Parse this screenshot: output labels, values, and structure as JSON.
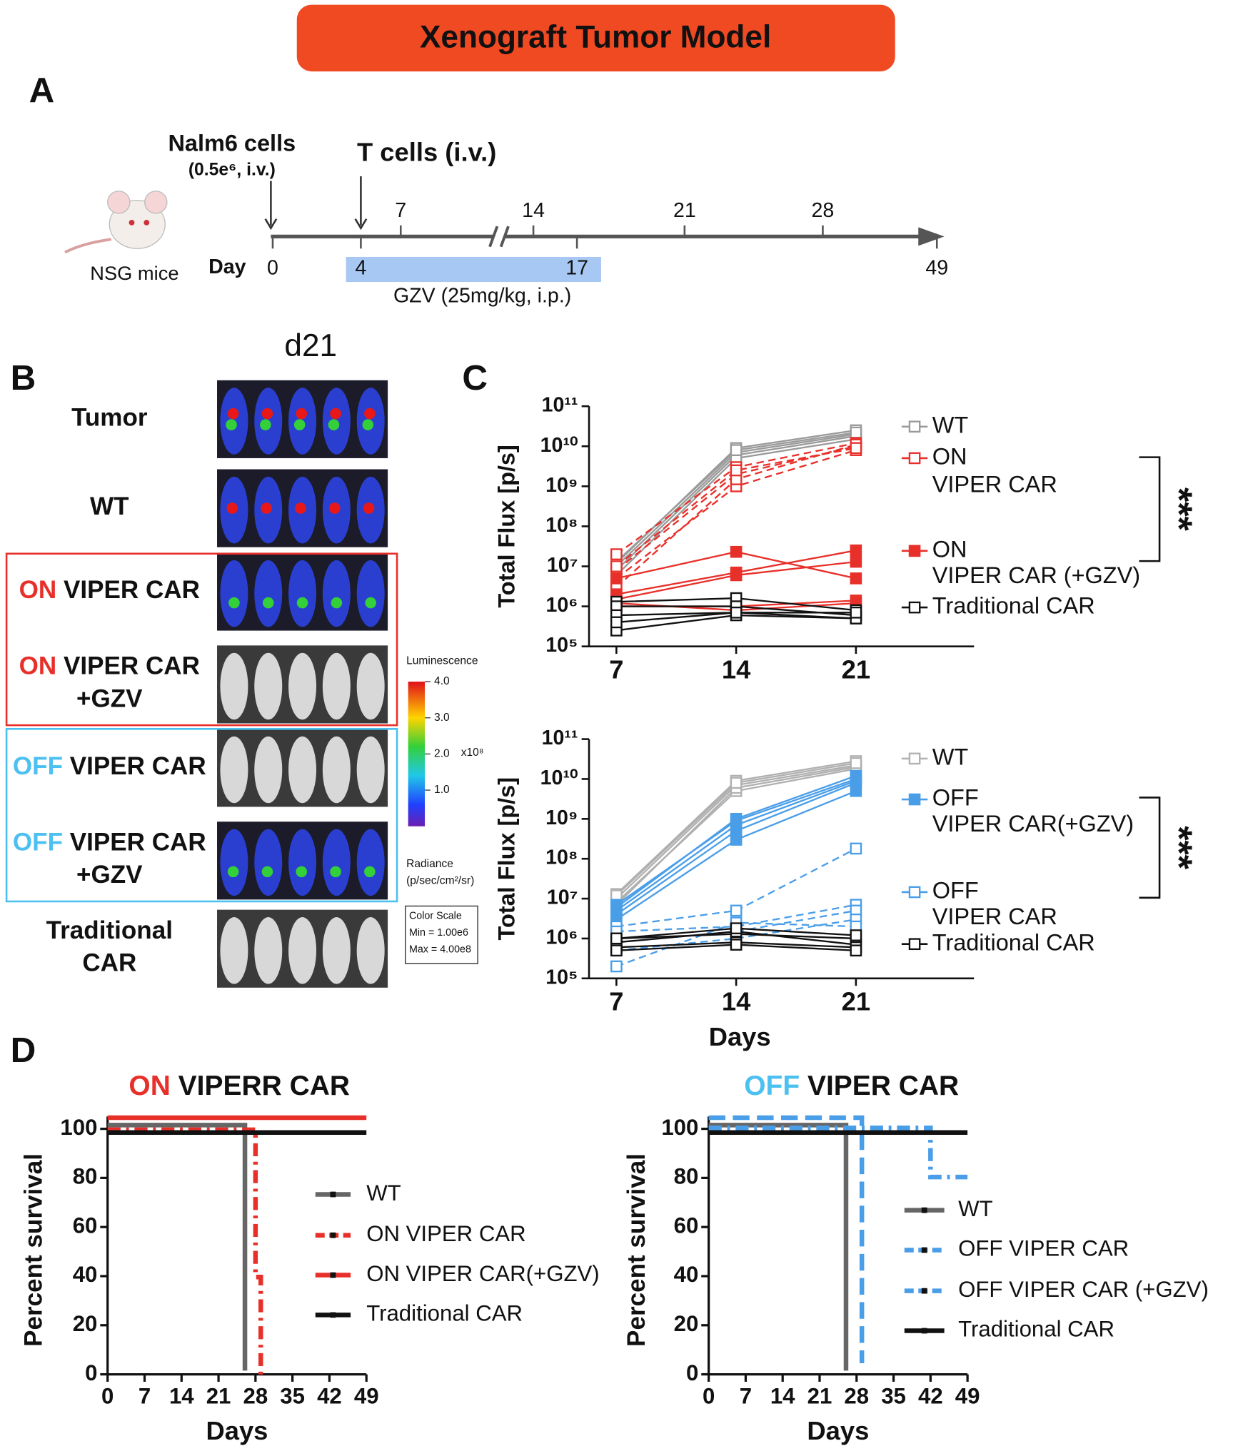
{
  "header": {
    "title": "Xenograft Tumor Model"
  },
  "panel_labels": [
    "A",
    "B",
    "C",
    "D"
  ],
  "panel_a": {
    "mouse": "NSG mice",
    "nalm6": "Nalm6 cells",
    "nalm6_dose": "(0.5e⁶, i.v.)",
    "tcells": "T cells (i.v.)",
    "day_label": "Day",
    "ticks_above": [
      7,
      14,
      21,
      28
    ],
    "ticks_below": [
      0,
      4,
      17,
      49
    ],
    "gzv": "GZV (25mg/kg, i.p.)"
  },
  "panel_b": {
    "title": "d21",
    "rows": [
      {
        "label": [
          "Tumor"
        ]
      },
      {
        "label": [
          "WT"
        ]
      },
      {
        "prefix": "ON",
        "prefix_color": "#e8302a",
        "label": [
          "VIPER CAR"
        ]
      },
      {
        "prefix": "ON",
        "prefix_color": "#e8302a",
        "label": [
          "VIPER CAR",
          "+GZV"
        ]
      },
      {
        "prefix": "OFF",
        "prefix_color": "#4cc0f0",
        "label": [
          "VIPER CAR"
        ]
      },
      {
        "prefix": "OFF",
        "prefix_color": "#4cc0f0",
        "label": [
          "VIPER CAR",
          "+GZV"
        ]
      },
      {
        "label": [
          "Traditional",
          "CAR"
        ]
      }
    ],
    "colorbar": {
      "title": "Luminescence",
      "range": [
        0,
        4
      ],
      "ticks": [
        {
          "value": 4,
          "label": "4.0"
        },
        {
          "value": 3,
          "label": "3.0"
        },
        {
          "value": 2,
          "label": "2.0"
        },
        {
          "value": 1,
          "label": "1.0"
        }
      ],
      "multiplier": "x10⁸",
      "unit_title": "Radiance",
      "unit": "(p/sec/cm²/sr)",
      "scale_box": [
        "Color Scale",
        "Min = 1.00e6",
        "Max = 4.00e8"
      ]
    }
  },
  "chart_data": [
    {
      "type": "line",
      "y_label": "Total Flux [p/s]",
      "log_y": true,
      "x": [
        7,
        14,
        21
      ],
      "xlim": [
        5.4,
        27.9
      ],
      "xticks": [
        7,
        14,
        21
      ],
      "ylim": [
        100000,
        100000000000
      ],
      "yticks": [
        {
          "value": 100000,
          "label": "10⁵"
        },
        {
          "value": 1000000,
          "label": "10⁶"
        },
        {
          "value": 10000000,
          "label": "10⁷"
        },
        {
          "value": 100000000,
          "label": "10⁸"
        },
        {
          "value": 1000000000,
          "label": "10⁹"
        },
        {
          "value": 10000000000,
          "label": "10¹⁰"
        },
        {
          "value": 100000000000,
          "label": "10¹¹"
        }
      ],
      "annotation": "***",
      "series": [
        {
          "name": [
            "WT"
          ],
          "color": "#9a9a9a",
          "marker": "open",
          "dashed": false,
          "values": [
            [
              12000000.0,
              9000000000.0,
              25000000000.0
            ],
            [
              10000000.0,
              7000000000.0,
              20000000000.0
            ],
            [
              8000000.0,
              6000000000.0,
              18000000000.0
            ],
            [
              6000000.0,
              5000000000.0,
              15000000000.0
            ],
            [
              13000000.0,
              8000000000.0,
              22000000000.0
            ]
          ]
        },
        {
          "name": [
            "ON",
            "VIPER CAR"
          ],
          "color": "#e8302a",
          "marker": "open",
          "dashed": true,
          "values": [
            [
              20000000.0,
              3000000000.0,
              12000000000.0
            ],
            [
              8000000.0,
              2000000000.0,
              10000000000.0
            ],
            [
              5000000.0,
              1000000000.0,
              8000000000.0
            ],
            [
              3000000.0,
              1500000000.0,
              11000000000.0
            ],
            [
              10000000.0,
              2500000000.0,
              9000000000.0
            ]
          ]
        },
        {
          "name": [
            "ON",
            "VIPER CAR (+GZV)"
          ],
          "color": "#e8302a",
          "marker": "filled",
          "dashed": false,
          "values": [
            [
              5000000.0,
              23000000.0,
              5000000.0
            ],
            [
              2000000.0,
              7000000.0,
              25000000.0
            ],
            [
              1500000.0,
              6000000.0,
              13000000.0
            ],
            [
              1000000.0,
              1000000.0,
              1400000.0
            ],
            [
              1200000.0,
              800000.0,
              1200000.0
            ]
          ]
        },
        {
          "name": [
            "Traditional CAR"
          ],
          "color": "#111111",
          "marker": "open",
          "dashed": false,
          "values": [
            [
              1300000.0,
              1600000.0,
              800000.0
            ],
            [
              1000000.0,
              1000000.0,
              600000.0
            ],
            [
              600000.0,
              700000.0,
              500000.0
            ],
            [
              250000.0,
              600000.0,
              500000.0
            ],
            [
              400000.0,
              700000.0,
              700000.0
            ]
          ]
        }
      ]
    },
    {
      "type": "line",
      "y_label": "Total Flux [p/s]",
      "x_label": "Days",
      "log_y": true,
      "x": [
        7,
        14,
        21
      ],
      "xlim": [
        5.4,
        27.9
      ],
      "xticks": [
        7,
        14,
        21
      ],
      "ylim": [
        100000,
        100000000000
      ],
      "yticks": [
        {
          "value": 100000,
          "label": "10⁵"
        },
        {
          "value": 1000000,
          "label": "10⁶"
        },
        {
          "value": 10000000,
          "label": "10⁷"
        },
        {
          "value": 100000000,
          "label": "10⁸"
        },
        {
          "value": 1000000000,
          "label": "10⁹"
        },
        {
          "value": 10000000000,
          "label": "10¹⁰"
        },
        {
          "value": 100000000000,
          "label": "10¹¹"
        }
      ],
      "annotation": "***",
      "series": [
        {
          "name": [
            "WT"
          ],
          "color": "#b0b0b0",
          "marker": "open",
          "dashed": false,
          "values": [
            [
              13000000.0,
              9000000000.0,
              28000000000.0
            ],
            [
              10000000.0,
              7000000000.0,
              22000000000.0
            ],
            [
              8000000.0,
              5000000000.0,
              18000000000.0
            ],
            [
              7000000.0,
              6000000000.0,
              20000000000.0
            ],
            [
              12000000.0,
              8000000000.0,
              25000000000.0
            ]
          ]
        },
        {
          "name": [
            "OFF",
            "VIPER CAR(+GZV)"
          ],
          "color": "#4a9ee8",
          "marker": "filled",
          "dashed": false,
          "values": [
            [
              6000000.0,
              1000000000.0,
              12000000000.0
            ],
            [
              5000000.0,
              700000000.0,
              9000000000.0
            ],
            [
              4000000.0,
              500000000.0,
              8000000000.0
            ],
            [
              3000000.0,
              300000000.0,
              5000000000.0
            ],
            [
              7000000.0,
              900000000.0,
              10000000000.0
            ]
          ]
        },
        {
          "name": [
            "OFF",
            "VIPER CAR"
          ],
          "color": "#4a9ee8",
          "marker": "open",
          "dashed": true,
          "values": [
            [
              2000000.0,
              5000000.0,
              180000000.0
            ],
            [
              1500000.0,
              2000000.0,
              7000000.0
            ],
            [
              800000.0,
              1500000.0,
              5000000.0
            ],
            [
              500000.0,
              1000000.0,
              3000000.0
            ],
            [
              200000.0,
              2500000.0,
              2000000.0
            ]
          ]
        },
        {
          "name": [
            "Traditional CAR"
          ],
          "color": "#111111",
          "marker": "open",
          "dashed": false,
          "values": [
            [
              1000000.0,
              1300000.0,
              1000000.0
            ],
            [
              800000.0,
              1500000.0,
              700000.0
            ],
            [
              600000.0,
              800000.0,
              600000.0
            ],
            [
              500000.0,
              700000.0,
              500000.0
            ],
            [
              1000000.0,
              1800000.0,
              1200000.0
            ]
          ]
        }
      ]
    },
    {
      "type": "step",
      "title_prefix": "ON",
      "prefix_color": "#e8302a",
      "title": "VIPERR CAR",
      "y_label": "Percent survival",
      "x_label": "Days",
      "xlim": [
        0,
        49
      ],
      "xticks": [
        0,
        7,
        14,
        21,
        28,
        35,
        42,
        49
      ],
      "ylim": [
        0,
        105
      ],
      "yticks": [
        0,
        20,
        40,
        60,
        80,
        100
      ],
      "series": [
        {
          "name": "WT",
          "color": "#666666",
          "line_style": "solid",
          "x": [
            0,
            26,
            26
          ],
          "values": [
            100,
            100,
            0
          ]
        },
        {
          "name": "ON VIPER CAR",
          "color": "#e8302a",
          "line_style": "dashdot",
          "x": [
            0,
            28,
            28,
            29,
            29
          ],
          "values": [
            100,
            100,
            40,
            40,
            0
          ]
        },
        {
          "name": "ON VIPER CAR(+GZV)",
          "color": "#e8302a",
          "line_style": "solid",
          "x": [
            0,
            49
          ],
          "values": [
            100,
            100
          ]
        },
        {
          "name": "Traditional CAR",
          "color": "#111111",
          "line_style": "solid",
          "x": [
            0,
            49
          ],
          "values": [
            100,
            100
          ]
        }
      ]
    },
    {
      "type": "step",
      "title_prefix": "OFF",
      "prefix_color": "#4cc0f0",
      "title": "VIPER CAR",
      "y_label": "Percent survival",
      "x_label": "Days",
      "xlim": [
        0,
        49
      ],
      "xticks": [
        0,
        7,
        14,
        21,
        28,
        35,
        42,
        49
      ],
      "ylim": [
        0,
        105
      ],
      "yticks": [
        0,
        20,
        40,
        60,
        80,
        100
      ],
      "series": [
        {
          "name": "WT",
          "color": "#666666",
          "line_style": "solid",
          "x": [
            0,
            26,
            26
          ],
          "values": [
            100,
            100,
            0
          ]
        },
        {
          "name": "OFF VIPER CAR",
          "color": "#4a9ee8",
          "line_style": "dashdot",
          "x": [
            0,
            42,
            42,
            49
          ],
          "values": [
            100,
            100,
            80,
            80
          ]
        },
        {
          "name": "OFF VIPER CAR (+GZV)",
          "color": "#4a9ee8",
          "line_style": "dashed",
          "x": [
            0,
            29,
            29
          ],
          "values": [
            100,
            100,
            0
          ]
        },
        {
          "name": "Traditional CAR",
          "color": "#111111",
          "line_style": "solid",
          "x": [
            0,
            49
          ],
          "values": [
            100,
            100
          ]
        }
      ]
    }
  ]
}
